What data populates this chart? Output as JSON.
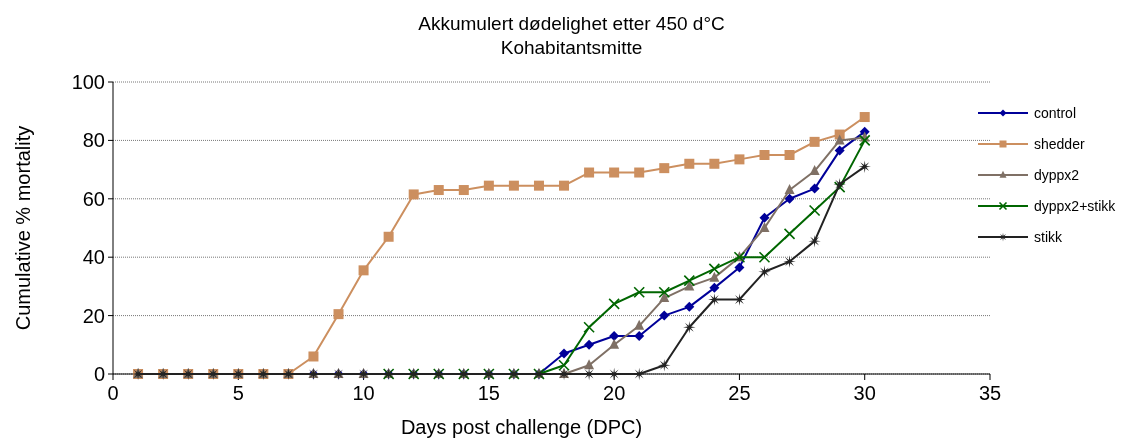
{
  "chart_data": {
    "type": "line",
    "title": "Akkumulert dødelighet etter 450 d°C",
    "subtitle": "Kohabitantsmitte",
    "xlabel": "Days post challenge (DPC)",
    "ylabel": "Cumulative % mortality",
    "x": [
      1,
      2,
      3,
      4,
      5,
      6,
      7,
      8,
      9,
      10,
      11,
      12,
      13,
      14,
      15,
      16,
      17,
      18,
      19,
      20,
      21,
      22,
      23,
      24,
      25,
      26,
      27,
      28,
      29,
      30
    ],
    "xlim": [
      0,
      35
    ],
    "xticks": [
      0,
      5,
      10,
      15,
      20,
      25,
      30,
      35
    ],
    "ylim": [
      0,
      100
    ],
    "yticks": [
      0,
      20,
      40,
      60,
      80,
      100
    ],
    "grid": "y",
    "legend": "right",
    "line_style": "solid",
    "series": [
      {
        "name": "control",
        "color": "#000099",
        "marker": "diamond",
        "values": [
          null,
          null,
          null,
          null,
          null,
          null,
          0,
          0,
          0,
          0,
          0,
          0,
          0,
          0,
          0,
          0,
          0,
          7,
          10,
          13,
          13,
          20,
          23,
          29.5,
          36.5,
          53.5,
          60,
          63.5,
          76.5,
          83
        ]
      },
      {
        "name": "shedder",
        "color": "#cc8f5f",
        "marker": "square",
        "values": [
          0,
          0,
          0,
          0,
          0,
          0,
          0,
          6,
          20.5,
          35.5,
          47,
          61.5,
          63,
          63,
          64.5,
          64.5,
          64.5,
          64.5,
          69,
          69,
          69,
          70.5,
          72,
          72,
          73.5,
          75,
          75,
          79.5,
          82,
          88
        ]
      },
      {
        "name": "dyppx2",
        "color": "#7f7065",
        "marker": "triangle",
        "values": [
          0,
          0,
          0,
          0,
          0,
          0,
          0,
          0,
          0,
          0,
          0,
          0,
          0,
          0,
          0,
          0,
          0,
          0,
          3,
          10,
          16.5,
          26,
          30,
          33,
          40,
          50,
          63,
          69.5,
          80,
          81
        ]
      },
      {
        "name": "dyppx2+stikk",
        "color": "#006600",
        "marker": "cross",
        "values": [
          null,
          null,
          null,
          null,
          null,
          null,
          null,
          null,
          null,
          null,
          0,
          0,
          0,
          0,
          0,
          0,
          0,
          3,
          16,
          24,
          28,
          28,
          32,
          36,
          40,
          40,
          48,
          56,
          64,
          80
        ]
      },
      {
        "name": "stikk",
        "color": "#222222",
        "marker": "star",
        "values": [
          0,
          0,
          0,
          0,
          0,
          0,
          0,
          0,
          0,
          0,
          0,
          0,
          0,
          0,
          0,
          0,
          0,
          0,
          0,
          0,
          0,
          3,
          16,
          25.5,
          25.5,
          35,
          38.5,
          45.5,
          65,
          71
        ]
      }
    ]
  }
}
